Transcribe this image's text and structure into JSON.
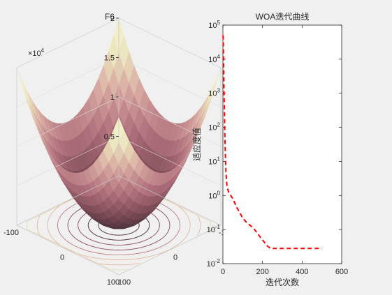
{
  "chart_data": [
    {
      "type": "surface3d",
      "title": "F6",
      "z_axis": {
        "exponent_label": "×10",
        "exponent": "4",
        "ticks": [
          {
            "label": "0.5",
            "value": 0.5
          },
          {
            "label": "1",
            "value": 1
          },
          {
            "label": "1.5",
            "value": 1.5
          },
          {
            "label": "2",
            "value": 2
          }
        ],
        "range": [
          0,
          2
        ]
      },
      "x_axis": {
        "ticks": [
          {
            "label": "-100",
            "value": -100
          },
          {
            "label": "0",
            "value": 0
          },
          {
            "label": "100",
            "value": 100
          }
        ],
        "range": [
          -100,
          100
        ]
      },
      "y_axis": {
        "ticks": [
          {
            "label": "-100",
            "value": -100
          },
          {
            "label": "0",
            "value": 0
          },
          {
            "label": "100",
            "value": 100
          }
        ],
        "range": [
          -100,
          100
        ]
      },
      "colormap": [
        "#3d2b35",
        "#7a4a55",
        "#b0707c",
        "#d6a6a0",
        "#ece6bd",
        "#f5f5d5"
      ],
      "contour_colors": [
        "#4a2a35",
        "#8a4a5a",
        "#c07a80",
        "#e0b8a0",
        "#e8dcb8"
      ]
    },
    {
      "type": "line",
      "title": "WOA迭代曲线",
      "xlabel": "迭代次数",
      "ylabel": "适应度值",
      "yscale": "log",
      "xlim": [
        0,
        600
      ],
      "ylim": [
        0.01,
        100000
      ],
      "grid": false,
      "x_ticks": [
        {
          "label": "0",
          "value": 0
        },
        {
          "label": "200",
          "value": 200
        },
        {
          "label": "400",
          "value": 400
        },
        {
          "label": "600",
          "value": 600
        }
      ],
      "y_ticks": [
        {
          "base": "10",
          "exp": "-2",
          "value": 0.01
        },
        {
          "base": "10",
          "exp": "-1",
          "value": 0.1
        },
        {
          "base": "10",
          "exp": "0",
          "value": 1
        },
        {
          "base": "10",
          "exp": "1",
          "value": 10
        },
        {
          "base": "10",
          "exp": "2",
          "value": 100
        },
        {
          "base": "10",
          "exp": "3",
          "value": 1000
        },
        {
          "base": "10",
          "exp": "4",
          "value": 10000
        },
        {
          "base": "10",
          "exp": "5",
          "value": 100000
        }
      ],
      "series": [
        {
          "color": "#ff0000",
          "style": "dashed",
          "x": [
            1,
            2,
            3,
            4,
            5,
            6,
            8,
            10,
            12,
            15,
            20,
            25,
            30,
            40,
            50,
            60,
            70,
            80,
            90,
            100,
            120,
            140,
            160,
            180,
            200,
            220,
            240,
            300,
            400,
            500
          ],
          "y": [
            50000,
            30000,
            12000,
            5000,
            2000,
            800,
            250,
            60,
            20,
            5,
            2,
            1.5,
            1.2,
            1.0,
            0.8,
            0.6,
            0.45,
            0.35,
            0.28,
            0.22,
            0.16,
            0.13,
            0.1,
            0.07,
            0.05,
            0.035,
            0.028,
            0.028,
            0.028,
            0.028
          ]
        }
      ]
    }
  ]
}
